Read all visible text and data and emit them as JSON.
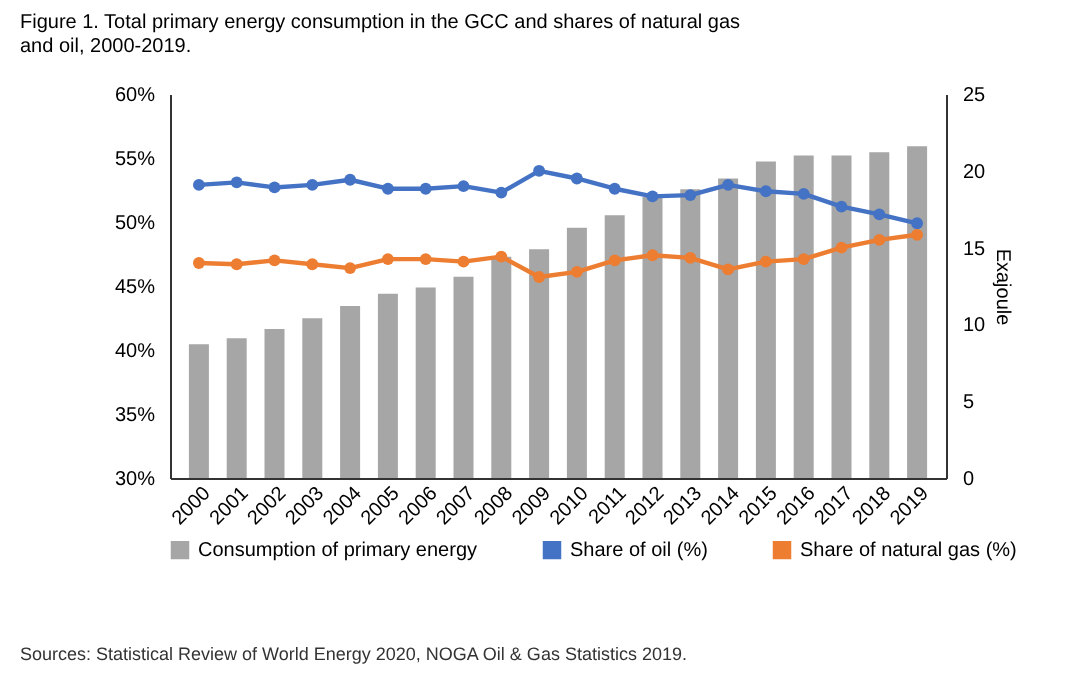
{
  "chart_data": {
    "type": "bar",
    "title": "Figure 1. Total primary energy consumption in the GCC and shares of natural gas and oil, 2000-2019.",
    "y2label": "Exajoule",
    "categories": [
      "2000",
      "2001",
      "2002",
      "2003",
      "2004",
      "2005",
      "2006",
      "2007",
      "2008",
      "2009",
      "2010",
      "2011",
      "2012",
      "2013",
      "2014",
      "2015",
      "2016",
      "2017",
      "2018",
      "2019"
    ],
    "series": [
      {
        "name": "Consumption of primary energy",
        "axis": "y2",
        "color": "#a6a6a6",
        "values": [
          8.7,
          9.1,
          9.7,
          10.4,
          11.2,
          12.0,
          12.4,
          13.1,
          14.4,
          14.9,
          16.3,
          17.1,
          18.3,
          18.8,
          19.5,
          20.6,
          21.0,
          21.0,
          21.2,
          21.6
        ]
      },
      {
        "name": "Share of oil (%)",
        "type": "line",
        "color": "#4472c4",
        "values": [
          52.9,
          53.1,
          52.7,
          52.9,
          53.3,
          52.6,
          52.6,
          52.8,
          52.3,
          54.0,
          53.4,
          52.6,
          52.0,
          52.1,
          52.9,
          52.4,
          52.2,
          51.2,
          50.6,
          49.9
        ]
      },
      {
        "name": "Share of natural gas (%)",
        "type": "line",
        "color": "#ed7d31",
        "values": [
          46.8,
          46.7,
          47.0,
          46.7,
          46.4,
          47.1,
          47.1,
          46.9,
          47.3,
          45.7,
          46.1,
          47.0,
          47.4,
          47.2,
          46.3,
          46.9,
          47.1,
          48.0,
          48.6,
          49.0
        ]
      }
    ],
    "ylim": [
      30,
      60
    ],
    "yticks": [
      {
        "value": 30,
        "label": "30%"
      },
      {
        "value": 35,
        "label": "35%"
      },
      {
        "value": 40,
        "label": "40%"
      },
      {
        "value": 45,
        "label": "45%"
      },
      {
        "value": 50,
        "label": "50%"
      },
      {
        "value": 55,
        "label": "55%"
      },
      {
        "value": 60,
        "label": "60%"
      }
    ],
    "y2lim": [
      0,
      25
    ],
    "y2ticks": [
      0,
      5,
      10,
      15,
      20,
      25
    ],
    "marker": "circle",
    "line_style": "solid",
    "grid": false,
    "legend": "bottom",
    "annotations": [
      "Sources: Statistical Review of World Energy 2020, NOGA Oil & Gas Statistics 2019."
    ]
  }
}
